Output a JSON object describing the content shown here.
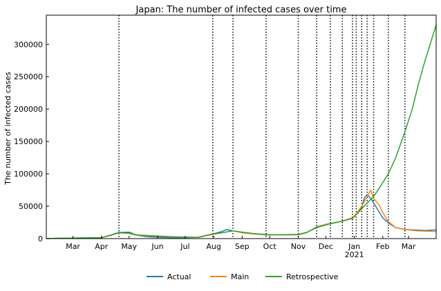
{
  "chart_data": {
    "type": "line",
    "title": "Japan: The number of infected cases over time",
    "xlabel": "",
    "ylabel": "The number of infected cases",
    "x_range": [
      "2020-02-01",
      "2021-03-31"
    ],
    "ylim": [
      0,
      345000
    ],
    "yticks": [
      0,
      50000,
      100000,
      150000,
      200000,
      250000,
      300000
    ],
    "ytick_labels": [
      "0",
      "50000",
      "100000",
      "150000",
      "200000",
      "250000",
      "300000"
    ],
    "xticks": [
      {
        "date": "2020-03-01",
        "label": "Mar"
      },
      {
        "date": "2020-04-01",
        "label": "Apr"
      },
      {
        "date": "2020-05-01",
        "label": "May"
      },
      {
        "date": "2020-06-01",
        "label": "Jun"
      },
      {
        "date": "2020-07-01",
        "label": "Jul"
      },
      {
        "date": "2020-08-01",
        "label": "Aug"
      },
      {
        "date": "2020-09-01",
        "label": "Sep"
      },
      {
        "date": "2020-10-01",
        "label": "Oct"
      },
      {
        "date": "2020-11-01",
        "label": "Nov"
      },
      {
        "date": "2020-12-01",
        "label": "Dec"
      },
      {
        "date": "2021-01-01",
        "label": "Jan",
        "sublabel": "2021"
      },
      {
        "date": "2021-02-01",
        "label": "Feb"
      },
      {
        "date": "2021-03-01",
        "label": "Mar"
      }
    ],
    "change_dates": [
      "2020-04-20",
      "2020-07-31",
      "2020-08-22",
      "2020-09-27",
      "2020-11-01",
      "2020-11-21",
      "2020-12-06",
      "2020-12-19",
      "2020-12-30",
      "2021-01-03",
      "2021-01-09",
      "2021-01-15",
      "2021-01-22",
      "2021-02-07",
      "2021-02-25"
    ],
    "grid": false,
    "legend_position": "bottom-center",
    "series": [
      {
        "name": "Actual",
        "color": "#1f77b4",
        "x": [
          "2020-02-01",
          "2020-03-01",
          "2020-04-01",
          "2020-04-10",
          "2020-04-20",
          "2020-05-01",
          "2020-05-10",
          "2020-05-20",
          "2020-06-01",
          "2020-06-15",
          "2020-07-01",
          "2020-07-15",
          "2020-07-31",
          "2020-08-10",
          "2020-08-15",
          "2020-08-22",
          "2020-09-01",
          "2020-09-15",
          "2020-10-01",
          "2020-10-15",
          "2020-11-01",
          "2020-11-10",
          "2020-11-21",
          "2020-12-01",
          "2020-12-06",
          "2020-12-19",
          "2020-12-30",
          "2021-01-03",
          "2021-01-09",
          "2021-01-12",
          "2021-01-15",
          "2021-01-20",
          "2021-01-25",
          "2021-02-01",
          "2021-02-07",
          "2021-02-15",
          "2021-02-25",
          "2021-03-10",
          "2021-03-20",
          "2021-03-31"
        ],
        "values": [
          100,
          800,
          1500,
          5000,
          9500,
          10000,
          5000,
          3000,
          2000,
          1500,
          1500,
          2000,
          7000,
          11000,
          14000,
          12000,
          9500,
          7000,
          5500,
          5800,
          6000,
          9000,
          18000,
          22000,
          23000,
          27000,
          32000,
          38000,
          48000,
          63000,
          68000,
          60000,
          48000,
          32000,
          24000,
          17000,
          14000,
          13000,
          12500,
          13500
        ]
      },
      {
        "name": "Main",
        "color": "#ff7f0e",
        "x": [
          "2020-02-01",
          "2020-03-01",
          "2020-04-01",
          "2020-04-10",
          "2020-04-20",
          "2020-05-01",
          "2020-05-10",
          "2020-06-01",
          "2020-06-15",
          "2020-07-01",
          "2020-07-15",
          "2020-07-31",
          "2020-08-10",
          "2020-08-22",
          "2020-09-01",
          "2020-09-15",
          "2020-10-01",
          "2020-10-15",
          "2020-11-01",
          "2020-11-10",
          "2020-11-21",
          "2020-12-01",
          "2020-12-06",
          "2020-12-19",
          "2020-12-30",
          "2021-01-03",
          "2021-01-09",
          "2021-01-15",
          "2021-01-19",
          "2021-01-22",
          "2021-01-28",
          "2021-02-01",
          "2021-02-07",
          "2021-02-15",
          "2021-02-25",
          "2021-03-10",
          "2021-03-20",
          "2021-03-31"
        ],
        "values": [
          100,
          700,
          1400,
          4500,
          9000,
          8000,
          5000,
          3500,
          2500,
          2000,
          1800,
          6500,
          9000,
          12000,
          9000,
          7000,
          5800,
          5500,
          6000,
          9000,
          17000,
          22000,
          23000,
          27000,
          32000,
          38000,
          50000,
          65000,
          75000,
          62000,
          52000,
          40000,
          26000,
          17000,
          14000,
          12000,
          11500,
          11000
        ]
      },
      {
        "name": "Retrospective",
        "color": "#2ca02c",
        "x": [
          "2020-02-01",
          "2020-03-01",
          "2020-04-01",
          "2020-04-10",
          "2020-04-20",
          "2020-05-01",
          "2020-05-10",
          "2020-06-01",
          "2020-06-15",
          "2020-07-01",
          "2020-07-15",
          "2020-07-31",
          "2020-08-10",
          "2020-08-22",
          "2020-09-01",
          "2020-09-15",
          "2020-10-01",
          "2020-10-15",
          "2020-11-01",
          "2020-11-10",
          "2020-11-21",
          "2020-12-01",
          "2020-12-06",
          "2020-12-19",
          "2020-12-30",
          "2021-01-03",
          "2021-01-09",
          "2021-01-15",
          "2021-01-22",
          "2021-01-29",
          "2021-02-07",
          "2021-02-15",
          "2021-02-25",
          "2021-03-05",
          "2021-03-12",
          "2021-03-19",
          "2021-03-31"
        ],
        "values": [
          100,
          800,
          1500,
          5000,
          9000,
          8500,
          5500,
          4000,
          3000,
          2200,
          2000,
          7000,
          9000,
          12000,
          10000,
          7500,
          6000,
          6000,
          6500,
          9500,
          17000,
          21000,
          23000,
          27000,
          31000,
          37000,
          46000,
          55000,
          65000,
          80000,
          100000,
          125000,
          165000,
          200000,
          240000,
          275000,
          330000
        ]
      }
    ]
  }
}
